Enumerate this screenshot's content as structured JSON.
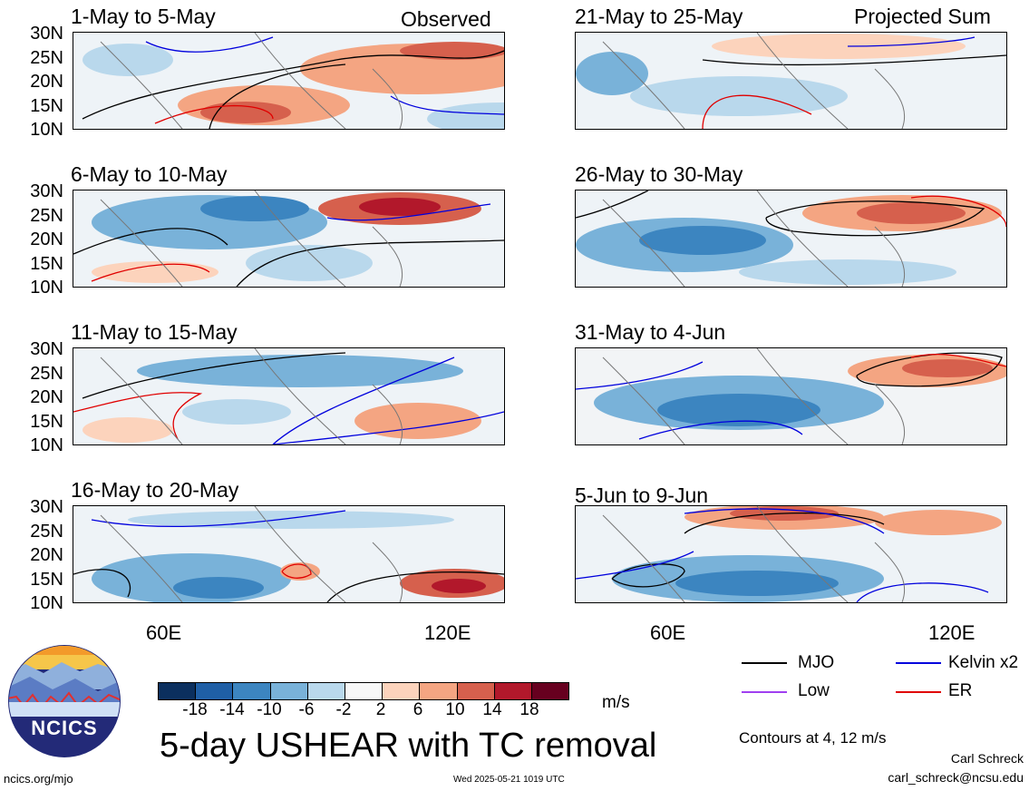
{
  "panels": [
    {
      "title": "1-May to 5-May",
      "tag": "Observed"
    },
    {
      "title": "6-May to 10-May",
      "tag": ""
    },
    {
      "title": "11-May to 15-May",
      "tag": ""
    },
    {
      "title": "16-May to 20-May",
      "tag": ""
    },
    {
      "title": "21-May to 25-May",
      "tag": "Projected Sum"
    },
    {
      "title": "26-May to 30-May",
      "tag": ""
    },
    {
      "title": "31-May to 4-Jun",
      "tag": ""
    },
    {
      "title": "5-Jun to 9-Jun",
      "tag": ""
    }
  ],
  "lat_labels": [
    "30N",
    "25N",
    "20N",
    "15N",
    "10N"
  ],
  "lon_labels": [
    "60E",
    "120E"
  ],
  "colorbar": {
    "ticks": [
      "-18",
      "-14",
      "-10",
      "-6",
      "-2",
      "2",
      "6",
      "10",
      "14",
      "18"
    ],
    "colors": [
      "#0b2f5e",
      "#1f5fa6",
      "#3c85c0",
      "#79b2d9",
      "#b9d8ec",
      "#f7f7f7",
      "#fcd3bc",
      "#f4a582",
      "#d6604d",
      "#b2182b",
      "#67001f"
    ],
    "unit": "m/s"
  },
  "legend": {
    "items": [
      {
        "label": "MJO",
        "color": "#000000"
      },
      {
        "label": "Kelvin x2",
        "color": "#0000dd"
      },
      {
        "label": "Low",
        "color": "#a040f0"
      },
      {
        "label": "ER",
        "color": "#e00000"
      }
    ],
    "contours_note": "Contours at 4, 12 m/s"
  },
  "main_title": "5-day USHEAR with TC removal",
  "logo_text": "NCICS",
  "footer": {
    "left": "ncics.org/mjo",
    "center": "Wed 2025-05-21 1019 UTC",
    "author": "Carl Schreck",
    "email": "carl_schreck@ncsu.edu"
  }
}
